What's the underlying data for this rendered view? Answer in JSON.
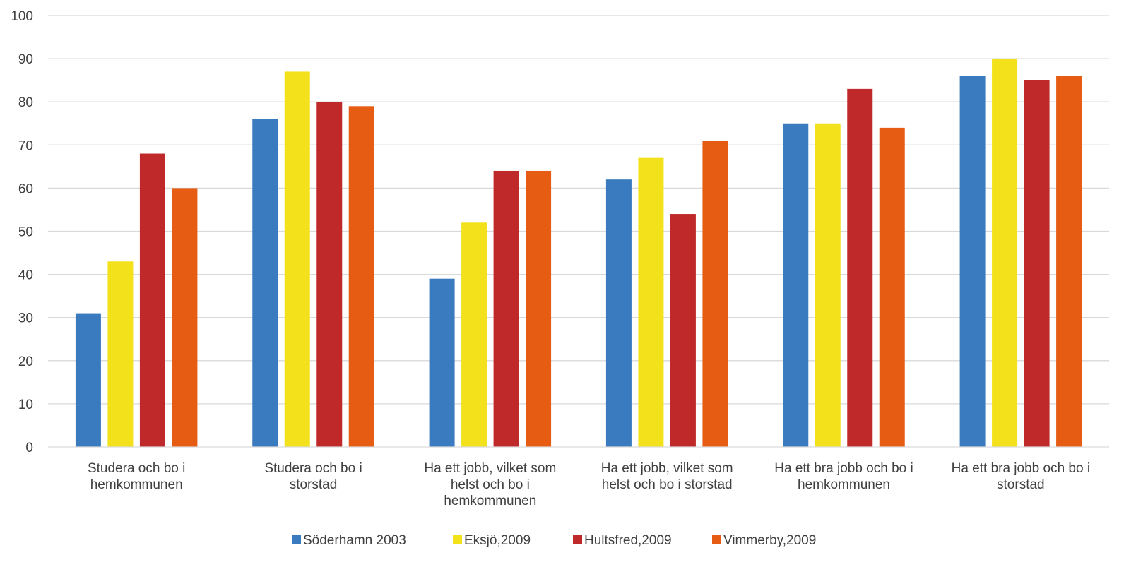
{
  "chart_data": {
    "type": "bar",
    "title": "",
    "xlabel": "",
    "ylabel": "",
    "ylim": [
      0,
      100
    ],
    "yticks": [
      0,
      10,
      20,
      30,
      40,
      50,
      60,
      70,
      80,
      90,
      100
    ],
    "grid": true,
    "legend_position": "bottom",
    "categories": [
      [
        "Studera och bo i",
        "hemkommunen"
      ],
      [
        "Studera och bo i",
        "storstad"
      ],
      [
        "Ha ett jobb, vilket som",
        "helst och bo i",
        "hemkommunen"
      ],
      [
        "Ha ett jobb, vilket som",
        "helst och bo i storstad"
      ],
      [
        "Ha ett bra jobb och bo i",
        "hemkommunen"
      ],
      [
        "Ha ett bra jobb och bo i",
        "storstad"
      ]
    ],
    "series": [
      {
        "name": "Söderhamn 2003",
        "color": "#3a7bbf",
        "values": [
          31,
          76,
          39,
          62,
          75,
          86
        ]
      },
      {
        "name": "Eksjö,2009",
        "color": "#f2e11b",
        "values": [
          43,
          87,
          52,
          67,
          75,
          90
        ]
      },
      {
        "name": "Hultsfred,2009",
        "color": "#c0292a",
        "values": [
          68,
          80,
          64,
          54,
          83,
          85
        ]
      },
      {
        "name": "Vimmerby,2009",
        "color": "#e65c12",
        "values": [
          60,
          79,
          64,
          71,
          74,
          86
        ]
      }
    ]
  }
}
